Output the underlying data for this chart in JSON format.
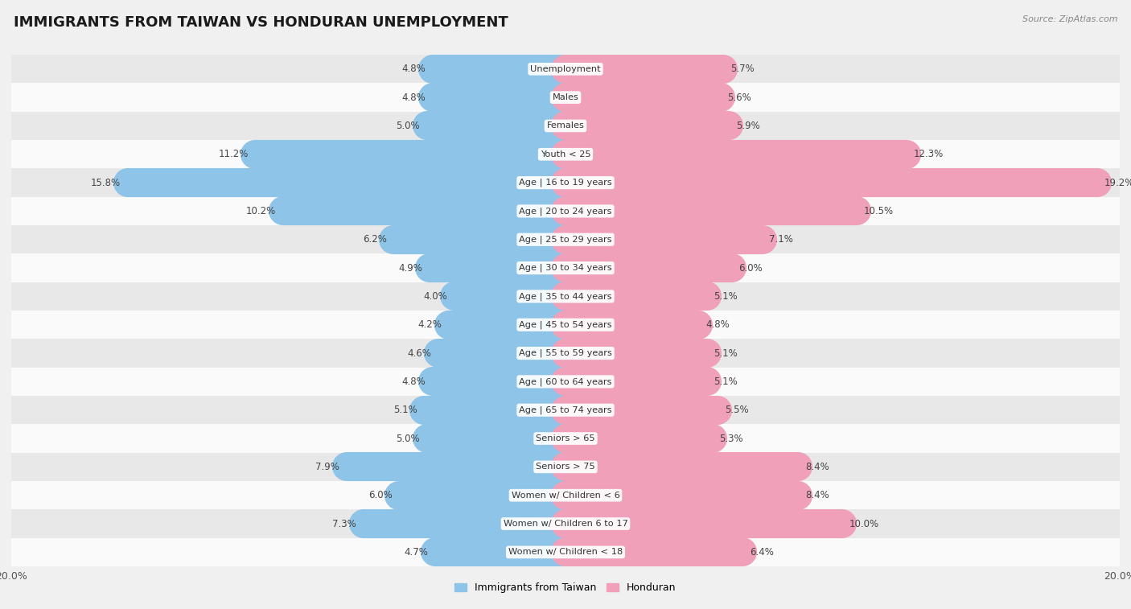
{
  "title": "IMMIGRANTS FROM TAIWAN VS HONDURAN UNEMPLOYMENT",
  "source": "Source: ZipAtlas.com",
  "categories": [
    "Unemployment",
    "Males",
    "Females",
    "Youth < 25",
    "Age | 16 to 19 years",
    "Age | 20 to 24 years",
    "Age | 25 to 29 years",
    "Age | 30 to 34 years",
    "Age | 35 to 44 years",
    "Age | 45 to 54 years",
    "Age | 55 to 59 years",
    "Age | 60 to 64 years",
    "Age | 65 to 74 years",
    "Seniors > 65",
    "Seniors > 75",
    "Women w/ Children < 6",
    "Women w/ Children 6 to 17",
    "Women w/ Children < 18"
  ],
  "taiwan_values": [
    4.8,
    4.8,
    5.0,
    11.2,
    15.8,
    10.2,
    6.2,
    4.9,
    4.0,
    4.2,
    4.6,
    4.8,
    5.1,
    5.0,
    7.9,
    6.0,
    7.3,
    4.7
  ],
  "honduran_values": [
    5.7,
    5.6,
    5.9,
    12.3,
    19.2,
    10.5,
    7.1,
    6.0,
    5.1,
    4.8,
    5.1,
    5.1,
    5.5,
    5.3,
    8.4,
    8.4,
    10.0,
    6.4
  ],
  "taiwan_color": "#8ec4e8",
  "honduran_color": "#f0a0b8",
  "background_color": "#f0f0f0",
  "row_light_color": "#fafafa",
  "row_dark_color": "#e8e8e8",
  "xlim": 20.0,
  "bar_height": 0.6,
  "legend_taiwan": "Immigrants from Taiwan",
  "legend_honduran": "Honduran",
  "label_fontsize": 8.5,
  "title_fontsize": 13,
  "source_fontsize": 8
}
